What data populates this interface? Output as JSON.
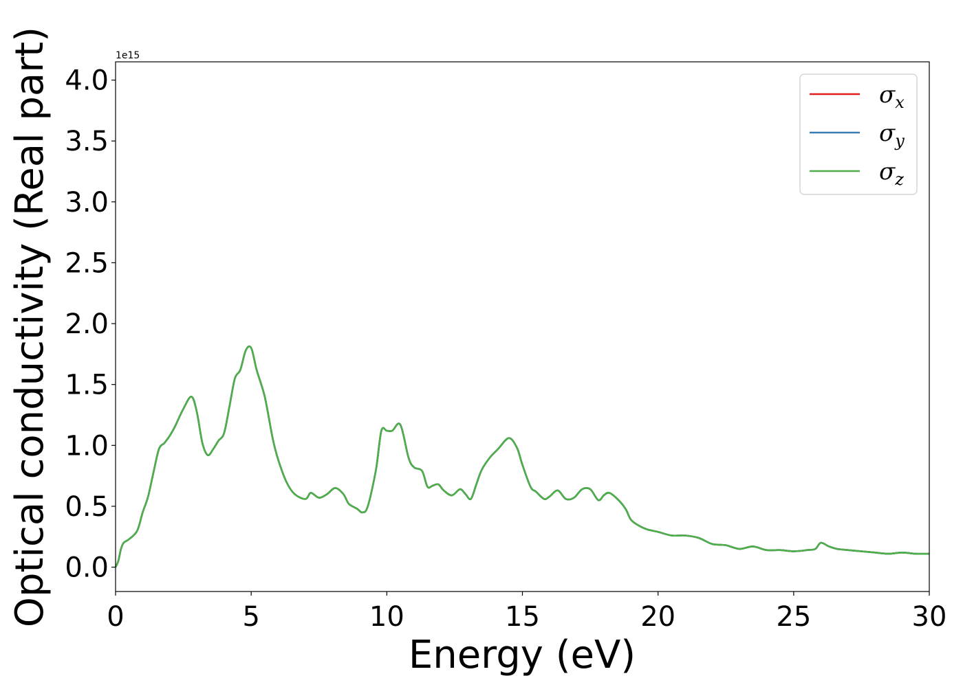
{
  "chart_data": {
    "type": "line",
    "xlabel": "Energy (eV)",
    "ylabel": "Optical conductivity (Real part)",
    "y_offset_label": "1e15",
    "xlim": [
      0,
      30
    ],
    "ylim": [
      -0.2,
      4.15
    ],
    "x_ticks": [
      0,
      5,
      10,
      15,
      20,
      25,
      30
    ],
    "y_ticks": [
      0.0,
      0.5,
      1.0,
      1.5,
      2.0,
      2.5,
      3.0,
      3.5,
      4.0
    ],
    "x_tick_labels": [
      "0",
      "5",
      "10",
      "15",
      "20",
      "25",
      "30"
    ],
    "y_tick_labels": [
      "0.0",
      "0.5",
      "1.0",
      "1.5",
      "2.0",
      "2.5",
      "3.0",
      "3.5",
      "4.0"
    ],
    "grid": false,
    "legend_position": "top-right",
    "series": [
      {
        "name": "σx",
        "symbol": "σ",
        "subscript": "x",
        "color": "#e41a1c"
      },
      {
        "name": "σy",
        "symbol": "σ",
        "subscript": "y",
        "color": "#377eb8"
      },
      {
        "name": "σz",
        "symbol": "σ",
        "subscript": "z",
        "color": "#4daf4a"
      }
    ],
    "x": [
      0,
      0.1,
      0.2,
      0.3,
      0.5,
      0.8,
      1.0,
      1.2,
      1.4,
      1.6,
      1.8,
      2.0,
      2.2,
      2.5,
      2.8,
      3.0,
      3.2,
      3.4,
      3.6,
      3.8,
      4.0,
      4.2,
      4.4,
      4.6,
      4.8,
      5.0,
      5.2,
      5.5,
      5.8,
      6.0,
      6.3,
      6.6,
      7.0,
      7.2,
      7.5,
      7.8,
      8.1,
      8.4,
      8.6,
      8.9,
      9.1,
      9.3,
      9.6,
      9.8,
      10.0,
      10.2,
      10.5,
      10.8,
      11.0,
      11.3,
      11.5,
      11.7,
      11.9,
      12.1,
      12.4,
      12.7,
      12.9,
      13.1,
      13.3,
      13.5,
      13.8,
      14.1,
      14.5,
      14.8,
      15.0,
      15.3,
      15.5,
      15.8,
      16.0,
      16.3,
      16.6,
      16.9,
      17.2,
      17.5,
      17.8,
      18.0,
      18.2,
      18.5,
      18.8,
      19.0,
      19.3,
      19.6,
      20.0,
      20.5,
      21.0,
      21.5,
      22.0,
      22.5,
      23.0,
      23.5,
      24.0,
      24.5,
      25.0,
      25.5,
      25.8,
      26.0,
      26.3,
      26.6,
      27.0,
      27.5,
      28.0,
      28.5,
      29.0,
      29.5,
      30.0
    ],
    "y": [
      0.0,
      0.05,
      0.15,
      0.2,
      0.23,
      0.3,
      0.45,
      0.58,
      0.78,
      0.97,
      1.02,
      1.08,
      1.16,
      1.3,
      1.4,
      1.27,
      1.02,
      0.92,
      0.97,
      1.04,
      1.1,
      1.32,
      1.55,
      1.62,
      1.78,
      1.8,
      1.62,
      1.4,
      1.05,
      0.88,
      0.7,
      0.6,
      0.56,
      0.61,
      0.57,
      0.6,
      0.65,
      0.6,
      0.52,
      0.48,
      0.45,
      0.5,
      0.8,
      1.12,
      1.12,
      1.12,
      1.17,
      0.9,
      0.82,
      0.79,
      0.66,
      0.67,
      0.68,
      0.63,
      0.59,
      0.64,
      0.6,
      0.56,
      0.68,
      0.8,
      0.9,
      0.97,
      1.06,
      0.98,
      0.84,
      0.66,
      0.62,
      0.56,
      0.58,
      0.63,
      0.56,
      0.57,
      0.64,
      0.64,
      0.55,
      0.59,
      0.61,
      0.56,
      0.48,
      0.39,
      0.34,
      0.31,
      0.29,
      0.26,
      0.26,
      0.24,
      0.19,
      0.18,
      0.15,
      0.17,
      0.14,
      0.14,
      0.13,
      0.14,
      0.15,
      0.2,
      0.17,
      0.15,
      0.14,
      0.13,
      0.12,
      0.11,
      0.12,
      0.11,
      0.11
    ]
  }
}
